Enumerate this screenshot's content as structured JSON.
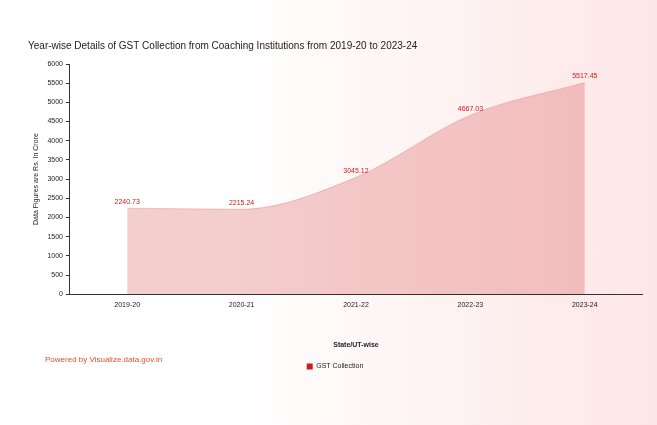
{
  "chart_data": {
    "type": "area",
    "title": "Year-wise Details of GST Collection from Coaching Institutions from 2019-20 to 2023-24",
    "x_label": "State/UT-wise",
    "y_label": "Data Figures are Rs. In Crore",
    "annotations": [
      "Powered by Visualize.data.gov.in"
    ],
    "categories": [
      "2019-20",
      "2020-21",
      "2021-22",
      "2022-23",
      "2023-24"
    ],
    "series": [
      {
        "name": "GST Collection",
        "color": "#cc1b1b",
        "values": [
          2240.73,
          2215.24,
          3045.12,
          4667.03,
          5517.45
        ]
      }
    ],
    "ylim": [
      0,
      6000
    ],
    "yticks": [
      0,
      500,
      1000,
      1500,
      2000,
      2500,
      3000,
      3500,
      4000,
      4500,
      5000,
      5500,
      6000
    ],
    "grid": false,
    "legend": "bottom",
    "data_labels": true
  }
}
